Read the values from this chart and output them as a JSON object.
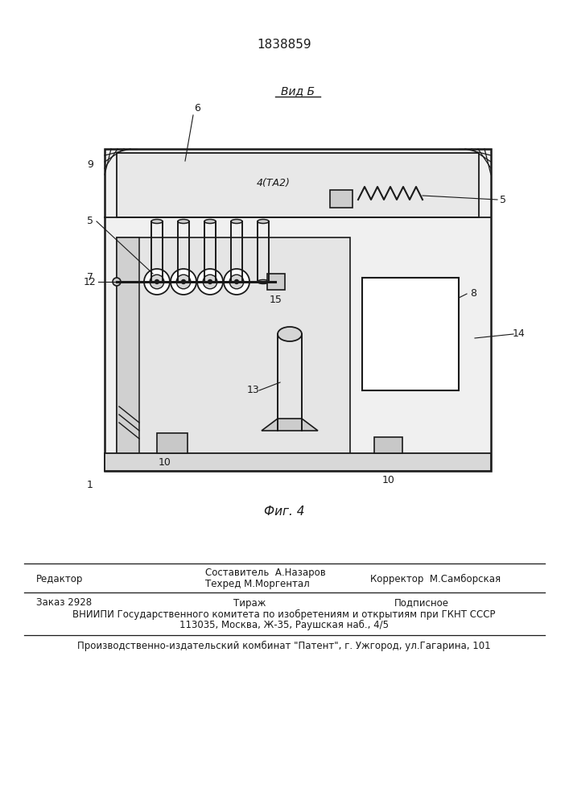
{
  "patent_number": "1838859",
  "fig_label": "Фиг. 4",
  "view_label": "Вид Б",
  "bg_color": "#ffffff",
  "lc": "#1a1a1a",
  "footer_editor": "Редактор",
  "footer_sostavitel": "Составитель  А.Назаров",
  "footer_tekhred": "Техред М.Моргентал",
  "footer_korrektor": "Корректор  М.Самборская",
  "footer_zakaz": "Заказ 2928",
  "footer_tirazh": "Тираж",
  "footer_podpisnoe": "Подписное",
  "footer_vniiipi": "ВНИИПИ Государственного комитета по изобретениям и открытиям при ГКНТ СССР",
  "footer_address": "113035, Москва, Ж-35, Раушская наб., 4/5",
  "footer_patent": "Производственно-издательский комбинат \"Патент\", г. Ужгород, ул.Гагарина, 101"
}
